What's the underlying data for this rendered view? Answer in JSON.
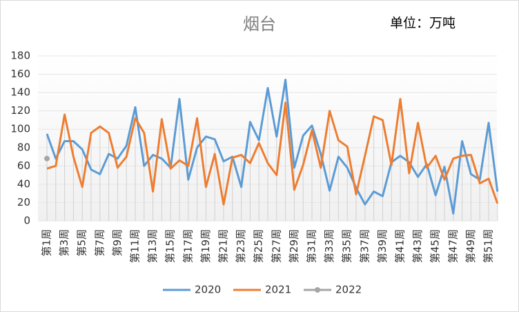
{
  "chart_data": {
    "type": "line",
    "title": "烟台",
    "annotation": "单位：万吨",
    "categories": [
      "第1周",
      null,
      "第3周",
      null,
      "第5周",
      null,
      "第7周",
      null,
      "第9周",
      null,
      "第11周",
      null,
      "第13周",
      null,
      "第15周",
      null,
      "第17周",
      null,
      "第19周",
      null,
      "第21周",
      null,
      "第23周",
      null,
      "第25周",
      null,
      "第27周",
      null,
      "第29周",
      null,
      "第31周",
      null,
      "第33周",
      null,
      "第35周",
      null,
      "第37周",
      null,
      "第39周",
      null,
      "第41周",
      null,
      "第43周",
      null,
      "第45周",
      null,
      "第47周",
      null,
      "第49周",
      null,
      "第51周",
      null
    ],
    "series": [
      {
        "name": "2020",
        "color": "#5b9bd5",
        "values": [
          95,
          68,
          87,
          87,
          78,
          56,
          51,
          73,
          68,
          82,
          124,
          60,
          72,
          68,
          58,
          133,
          45,
          80,
          92,
          89,
          65,
          70,
          37,
          108,
          88,
          145,
          92,
          154,
          58,
          93,
          104,
          73,
          33,
          70,
          58,
          36,
          18,
          32,
          27,
          64,
          71,
          64,
          48,
          62,
          28,
          59,
          8,
          87,
          51,
          45,
          107,
          32
        ]
      },
      {
        "name": "2021",
        "color": "#ed7d31",
        "values": [
          57,
          60,
          116,
          70,
          37,
          96,
          103,
          96,
          58,
          70,
          112,
          96,
          32,
          111,
          57,
          66,
          60,
          112,
          37,
          73,
          18,
          69,
          72,
          63,
          85,
          63,
          50,
          129,
          34,
          61,
          99,
          58,
          120,
          88,
          81,
          29,
          71,
          114,
          110,
          61,
          133,
          52,
          107,
          58,
          71,
          45,
          68,
          71,
          72,
          41,
          46,
          19
        ]
      },
      {
        "name": "2022",
        "color": "#a5a5a5",
        "values": [
          68,
          null,
          null,
          null,
          null,
          null,
          null,
          null,
          null,
          null,
          null,
          null,
          null,
          null,
          null,
          null,
          null,
          null,
          null,
          null,
          null,
          null,
          null,
          null,
          null,
          null,
          null,
          null,
          null,
          null,
          null,
          null,
          null,
          null,
          null,
          null,
          null,
          null,
          null,
          null,
          null,
          null,
          null,
          null,
          null,
          null,
          null,
          null,
          null,
          null,
          null,
          null
        ]
      }
    ],
    "ylim": [
      0,
      180
    ],
    "yticks": [
      0,
      20,
      40,
      60,
      80,
      100,
      120,
      140,
      160,
      180
    ],
    "grid": true,
    "legend": "bottom"
  }
}
